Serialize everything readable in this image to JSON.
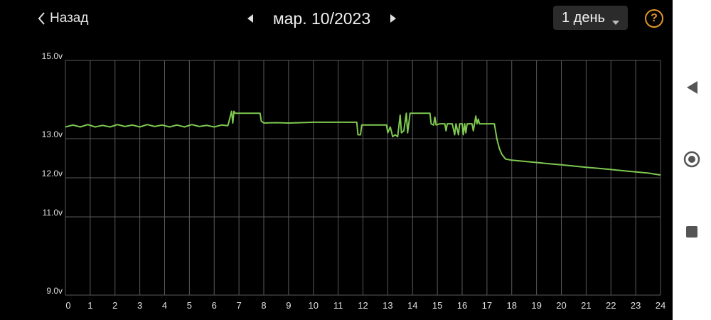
{
  "header": {
    "back_label": "Назад",
    "date_label": "мар. 10/2023",
    "period_label": "1 день",
    "help_symbol": "?"
  },
  "icons": {
    "back": "chevron-left-icon",
    "prev": "triangle-left-icon",
    "next": "triangle-right-icon",
    "dropdown": "caret-down-icon",
    "help": "question-circle-icon",
    "nav_back": "triangle-left-icon",
    "nav_home": "circle-home-icon",
    "nav_recent": "square-recent-icon"
  },
  "colors": {
    "background": "#000000",
    "line": "#7ec850",
    "grid": "#5a5a5a",
    "accent": "#e3962b"
  },
  "chart_data": {
    "type": "line",
    "xlim": [
      0,
      24
    ],
    "ylim": [
      9.0,
      15.0
    ],
    "x_ticks": [
      0,
      1,
      2,
      3,
      4,
      5,
      6,
      7,
      8,
      9,
      10,
      11,
      12,
      13,
      14,
      15,
      16,
      17,
      18,
      19,
      20,
      21,
      22,
      23,
      24
    ],
    "y_ticks": [
      {
        "value": 9.0,
        "label": "9.0v"
      },
      {
        "value": 11.0,
        "label": "11.0v"
      },
      {
        "value": 12.0,
        "label": "12.0v"
      },
      {
        "value": 13.0,
        "label": "13.0v"
      },
      {
        "value": 15.0,
        "label": "15.0v"
      }
    ],
    "grid": true,
    "series": [
      {
        "color": "#7ec850",
        "points": [
          [
            0.0,
            13.3
          ],
          [
            0.3,
            13.35
          ],
          [
            0.6,
            13.3
          ],
          [
            0.9,
            13.36
          ],
          [
            1.2,
            13.3
          ],
          [
            1.5,
            13.34
          ],
          [
            1.8,
            13.3
          ],
          [
            2.1,
            13.36
          ],
          [
            2.4,
            13.31
          ],
          [
            2.7,
            13.35
          ],
          [
            3.0,
            13.3
          ],
          [
            3.3,
            13.36
          ],
          [
            3.6,
            13.31
          ],
          [
            3.9,
            13.35
          ],
          [
            4.2,
            13.3
          ],
          [
            4.5,
            13.35
          ],
          [
            4.8,
            13.3
          ],
          [
            5.1,
            13.36
          ],
          [
            5.4,
            13.31
          ],
          [
            5.7,
            13.34
          ],
          [
            6.0,
            13.3
          ],
          [
            6.3,
            13.35
          ],
          [
            6.55,
            13.33
          ],
          [
            6.6,
            13.45
          ],
          [
            6.7,
            13.7
          ],
          [
            6.75,
            13.4
          ],
          [
            6.8,
            13.7
          ],
          [
            6.85,
            13.65
          ],
          [
            7.0,
            13.65
          ],
          [
            7.5,
            13.65
          ],
          [
            7.85,
            13.65
          ],
          [
            7.9,
            13.45
          ],
          [
            8.0,
            13.4
          ],
          [
            8.5,
            13.41
          ],
          [
            9.0,
            13.4
          ],
          [
            9.5,
            13.41
          ],
          [
            10.0,
            13.42
          ],
          [
            10.5,
            13.42
          ],
          [
            11.0,
            13.42
          ],
          [
            11.5,
            13.42
          ],
          [
            11.75,
            13.42
          ],
          [
            11.8,
            13.1
          ],
          [
            11.9,
            13.1
          ],
          [
            11.95,
            13.35
          ],
          [
            12.5,
            13.35
          ],
          [
            12.95,
            13.35
          ],
          [
            13.0,
            13.15
          ],
          [
            13.1,
            13.3
          ],
          [
            13.2,
            13.05
          ],
          [
            13.3,
            13.1
          ],
          [
            13.4,
            13.05
          ],
          [
            13.5,
            13.6
          ],
          [
            13.55,
            13.15
          ],
          [
            13.65,
            13.2
          ],
          [
            13.75,
            13.65
          ],
          [
            13.8,
            13.15
          ],
          [
            13.9,
            13.65
          ],
          [
            14.5,
            13.65
          ],
          [
            14.7,
            13.65
          ],
          [
            14.75,
            13.38
          ],
          [
            14.85,
            13.35
          ],
          [
            14.9,
            13.55
          ],
          [
            14.95,
            13.35
          ],
          [
            15.1,
            13.38
          ],
          [
            15.3,
            13.38
          ],
          [
            15.35,
            13.2
          ],
          [
            15.4,
            13.38
          ],
          [
            15.6,
            13.38
          ],
          [
            15.7,
            13.1
          ],
          [
            15.75,
            13.38
          ],
          [
            15.85,
            13.1
          ],
          [
            15.9,
            13.38
          ],
          [
            16.0,
            13.38
          ],
          [
            16.05,
            13.1
          ],
          [
            16.1,
            13.38
          ],
          [
            16.15,
            13.15
          ],
          [
            16.2,
            13.38
          ],
          [
            16.4,
            13.38
          ],
          [
            16.45,
            13.2
          ],
          [
            16.5,
            13.38
          ],
          [
            16.55,
            13.58
          ],
          [
            16.6,
            13.38
          ],
          [
            16.65,
            13.5
          ],
          [
            16.7,
            13.38
          ],
          [
            17.0,
            13.38
          ],
          [
            17.3,
            13.38
          ],
          [
            17.4,
            13.0
          ],
          [
            17.5,
            12.75
          ],
          [
            17.6,
            12.6
          ],
          [
            17.75,
            12.48
          ],
          [
            18.0,
            12.45
          ],
          [
            18.5,
            12.42
          ],
          [
            19.0,
            12.39
          ],
          [
            19.5,
            12.36
          ],
          [
            20.0,
            12.33
          ],
          [
            20.5,
            12.3
          ],
          [
            21.0,
            12.27
          ],
          [
            21.5,
            12.24
          ],
          [
            22.0,
            12.21
          ],
          [
            22.5,
            12.18
          ],
          [
            23.0,
            12.15
          ],
          [
            23.5,
            12.12
          ],
          [
            24.0,
            12.07
          ]
        ]
      }
    ]
  }
}
